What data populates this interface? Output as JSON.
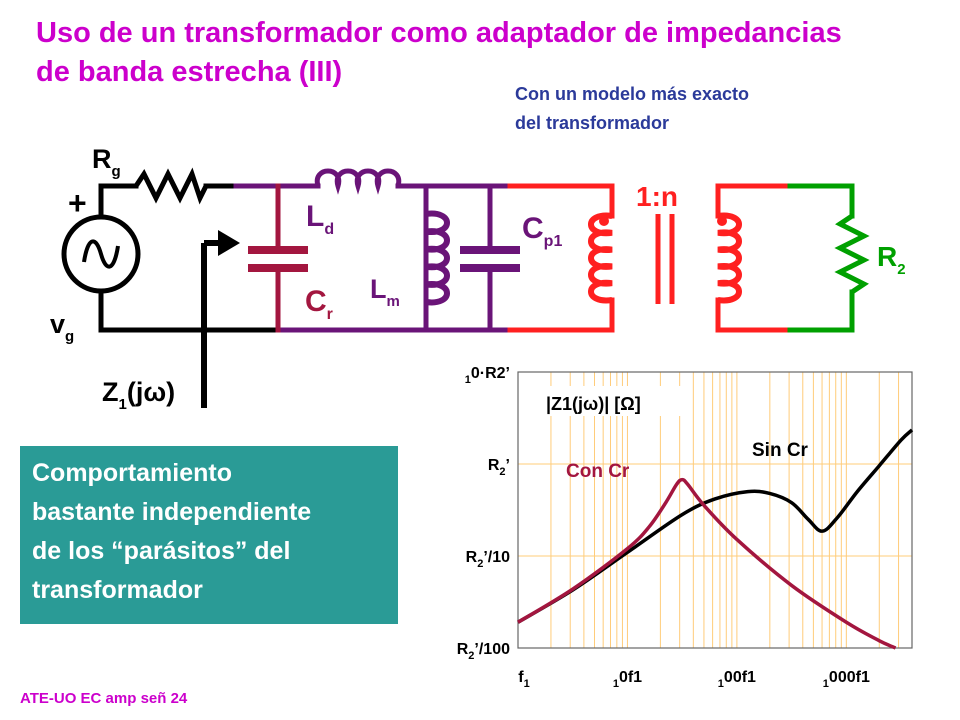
{
  "slide": {
    "title_line1": "Uso de un transformador como adaptador de impedancias",
    "title_line2": "de banda estrecha (III)",
    "subtitle_line1": "Con un modelo más exacto",
    "subtitle_line2": "del transformador",
    "footer": "ATE-UO EC amp señ 24",
    "note_lines": [
      "Comportamiento",
      "bastante independiente",
      "de los “parásitos” del",
      "transformador"
    ]
  },
  "circuit": {
    "labels": {
      "rg_main": "R",
      "rg_sub": "g",
      "vg_main": "v",
      "vg_sub": "g",
      "plus": "+",
      "ld_main": "L",
      "ld_sub": "d",
      "lm_main": "L",
      "lm_sub": "m",
      "cr_main": "C",
      "cr_sub": "r",
      "cp1_main": "C",
      "cp1_sub": "p1",
      "ratio": "1:n",
      "r2_main": "R",
      "r2_sub": "2",
      "z1_main": "Z",
      "z1_sub": "1",
      "z1_arg": "(jω)"
    },
    "colors": {
      "source": "#000000",
      "cr_branch": "#a3163f",
      "parasitic": "#6a1478",
      "transformer": "#ff2020",
      "load": "#00a000"
    }
  },
  "chart_data": {
    "type": "line",
    "title": "|Z1(jω)| [Ω]",
    "x_tick_labels": [
      "f1",
      "10f1",
      "100f1",
      "1000f1"
    ],
    "y_tick_labels": [
      "R2’/100",
      "R2’/10",
      "R2’",
      "10·R2’"
    ],
    "x_scale": "log",
    "y_scale": "log",
    "x_range_decades": [
      0,
      3.6
    ],
    "y_range_decades": [
      -2,
      1
    ],
    "grid": true,
    "series": [
      {
        "name": "Sin Cr",
        "color": "#000000",
        "points": [
          [
            0,
            -1.72
          ],
          [
            0.5,
            -1.37
          ],
          [
            1,
            -0.96
          ],
          [
            1.5,
            -0.55
          ],
          [
            1.8,
            -0.38
          ],
          [
            2.1,
            -0.3
          ],
          [
            2.3,
            -0.32
          ],
          [
            2.5,
            -0.42
          ],
          [
            2.65,
            -0.6
          ],
          [
            2.78,
            -0.73
          ],
          [
            2.92,
            -0.58
          ],
          [
            3.1,
            -0.3
          ],
          [
            3.3,
            -0.02
          ],
          [
            3.5,
            0.26
          ],
          [
            3.6,
            0.37
          ]
        ]
      },
      {
        "name": "Con Cr",
        "color": "#a3163f",
        "points": [
          [
            0,
            -1.72
          ],
          [
            0.5,
            -1.36
          ],
          [
            1,
            -0.92
          ],
          [
            1.2,
            -0.68
          ],
          [
            1.35,
            -0.42
          ],
          [
            1.45,
            -0.22
          ],
          [
            1.5,
            -0.17
          ],
          [
            1.55,
            -0.22
          ],
          [
            1.7,
            -0.45
          ],
          [
            2,
            -0.82
          ],
          [
            2.5,
            -1.32
          ],
          [
            3,
            -1.72
          ],
          [
            3.3,
            -1.92
          ],
          [
            3.45,
            -2.0
          ]
        ]
      }
    ]
  }
}
